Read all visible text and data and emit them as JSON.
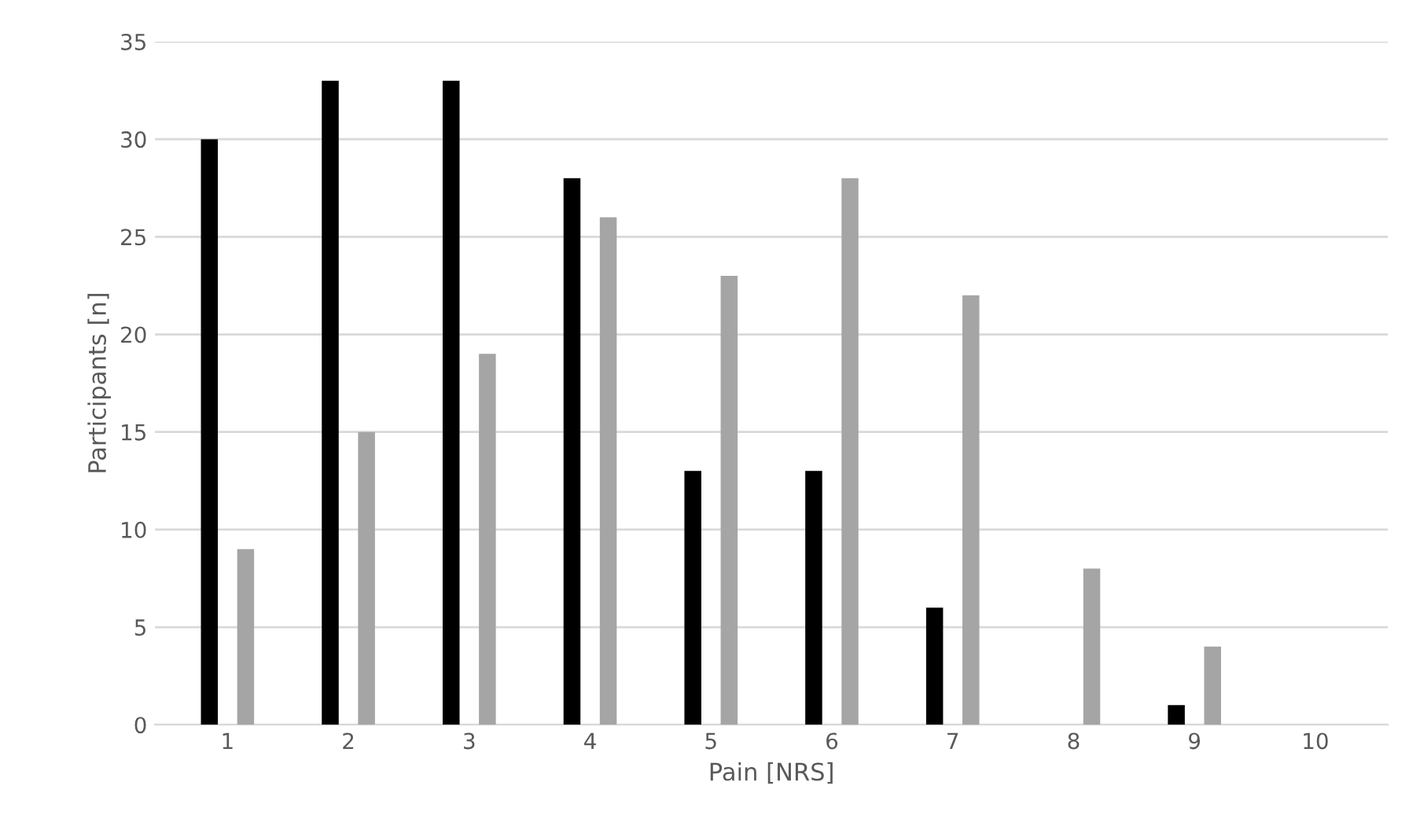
{
  "chart_data": {
    "type": "bar",
    "xlabel": "Pain [NRS]",
    "ylabel": "Participants [n]",
    "categories": [
      "1",
      "2",
      "3",
      "4",
      "5",
      "6",
      "7",
      "8",
      "9",
      "10"
    ],
    "series": [
      {
        "color": "#000000",
        "values": [
          30,
          33,
          33,
          28,
          13,
          13,
          6,
          0,
          1,
          0
        ]
      },
      {
        "color": "#a5a5a5",
        "values": [
          9,
          15,
          19,
          26,
          23,
          28,
          22,
          8,
          4,
          0
        ]
      }
    ],
    "ylim": [
      0,
      35
    ],
    "yticks": [
      0,
      5,
      10,
      15,
      20,
      25,
      30,
      35
    ],
    "grid": "y",
    "legend": false
  }
}
